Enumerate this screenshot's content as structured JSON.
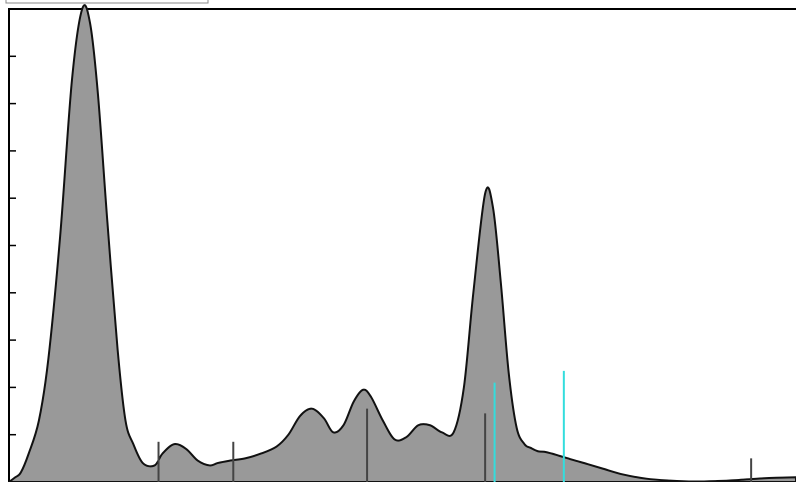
{
  "chart_data": {
    "type": "area",
    "title": "",
    "xlabel": "",
    "ylabel": "",
    "xlim": [
      0,
      100
    ],
    "ylim": [
      0,
      10
    ],
    "grid": false,
    "y_ticks": [
      0,
      1,
      2,
      3,
      4,
      5,
      6,
      7,
      8,
      9,
      10
    ],
    "series": [
      {
        "fill": "#999999",
        "stroke": "#111111",
        "x": [
          0.0,
          0.8,
          1.5,
          2.5,
          3.8,
          5.0,
          6.5,
          8.0,
          9.3,
          10.3,
          11.3,
          12.5,
          13.8,
          14.8,
          15.8,
          17.0,
          18.5,
          19.5,
          21.0,
          22.5,
          24.0,
          25.5,
          26.5,
          28.0,
          30.0,
          32.0,
          34.0,
          35.5,
          37.0,
          38.5,
          40.0,
          41.2,
          42.5,
          43.8,
          45.0,
          46.0,
          47.5,
          49.0,
          50.5,
          52.0,
          53.5,
          55.0,
          56.5,
          57.8,
          59.0,
          60.5,
          61.5,
          62.5,
          63.5,
          64.5,
          65.5,
          66.3,
          67.2,
          68.0,
          69.0,
          70.0,
          71.0,
          72.0,
          73.5,
          75.5,
          78.0,
          81.0,
          84.0,
          87.0,
          90.0,
          92.5,
          95.0,
          97.5,
          100.0
        ],
        "y": [
          0.0,
          0.1,
          0.2,
          0.6,
          1.3,
          2.6,
          5.2,
          8.5,
          10.0,
          9.7,
          8.2,
          5.5,
          2.8,
          1.3,
          0.8,
          0.4,
          0.35,
          0.6,
          0.8,
          0.7,
          0.45,
          0.35,
          0.4,
          0.45,
          0.5,
          0.6,
          0.75,
          1.0,
          1.4,
          1.55,
          1.35,
          1.05,
          1.2,
          1.7,
          1.95,
          1.8,
          1.3,
          0.9,
          0.95,
          1.2,
          1.2,
          1.05,
          1.05,
          2.0,
          4.0,
          6.1,
          5.8,
          4.2,
          2.3,
          1.15,
          0.8,
          0.72,
          0.65,
          0.64,
          0.6,
          0.55,
          0.5,
          0.45,
          0.38,
          0.28,
          0.16,
          0.07,
          0.03,
          0.01,
          0.02,
          0.04,
          0.07,
          0.09,
          0.1
        ]
      }
    ],
    "markers": [
      {
        "x": 19.0,
        "height": 0.85,
        "color": "#444444"
      },
      {
        "x": 28.5,
        "height": 0.85,
        "color": "#444444"
      },
      {
        "x": 45.5,
        "height": 1.55,
        "color": "#444444"
      },
      {
        "x": 60.5,
        "height": 1.45,
        "color": "#444444"
      },
      {
        "x": 61.7,
        "height": 2.1,
        "color": "#33dddd"
      },
      {
        "x": 70.5,
        "height": 2.35,
        "color": "#33dddd"
      },
      {
        "x": 94.3,
        "height": 0.5,
        "color": "#444444"
      }
    ]
  }
}
